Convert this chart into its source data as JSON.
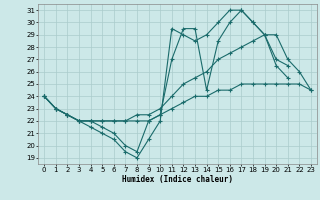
{
  "xlabel": "Humidex (Indice chaleur)",
  "bg_color": "#cce8e8",
  "line_color": "#1a6b6b",
  "grid_color": "#aacccc",
  "ylim": [
    19,
    31
  ],
  "xlim": [
    0,
    23
  ],
  "yticks": [
    19,
    20,
    21,
    22,
    23,
    24,
    25,
    26,
    27,
    28,
    29,
    30,
    31
  ],
  "xticks": [
    0,
    1,
    2,
    3,
    4,
    5,
    6,
    7,
    8,
    9,
    10,
    11,
    12,
    13,
    14,
    15,
    16,
    17,
    18,
    19,
    20,
    21,
    22,
    23
  ],
  "lines": [
    {
      "x": [
        0,
        1,
        2,
        3,
        4,
        5,
        6,
        7,
        8,
        9,
        10,
        11,
        12,
        13,
        14,
        15,
        16,
        17,
        18,
        19,
        20,
        21
      ],
      "y": [
        24,
        23,
        22.5,
        22,
        21.5,
        21,
        20.5,
        19.5,
        19,
        20.5,
        22,
        29.5,
        29,
        28.5,
        29,
        30,
        31,
        31,
        30,
        29,
        27,
        26.5
      ]
    },
    {
      "x": [
        0,
        1,
        2,
        3,
        4,
        5,
        6,
        7,
        8,
        9,
        10,
        11,
        12,
        13,
        14,
        15,
        16,
        17,
        18,
        19,
        20,
        21,
        22,
        23
      ],
      "y": [
        24,
        23,
        22.5,
        22,
        22,
        22,
        22,
        22,
        22,
        22,
        22.5,
        23,
        23.5,
        24,
        24,
        24.5,
        24.5,
        25,
        25,
        25,
        25,
        25,
        25,
        24.5
      ]
    },
    {
      "x": [
        0,
        1,
        2,
        3,
        4,
        5,
        6,
        7,
        8,
        9,
        10,
        11,
        12,
        13,
        14,
        15,
        16,
        17,
        18,
        19,
        20,
        21,
        22,
        23
      ],
      "y": [
        24,
        23,
        22.5,
        22,
        22,
        22,
        22,
        22,
        22.5,
        22.5,
        23,
        24,
        25,
        25.5,
        26,
        27,
        27.5,
        28,
        28.5,
        29,
        29,
        27,
        26,
        24.5
      ]
    },
    {
      "x": [
        0,
        1,
        2,
        3,
        4,
        5,
        6,
        7,
        8,
        9,
        10,
        11,
        12,
        13,
        14,
        15,
        16,
        17,
        18,
        19,
        20,
        21
      ],
      "y": [
        24,
        23,
        22.5,
        22,
        22,
        21.5,
        21,
        20,
        19.5,
        22,
        22.5,
        27,
        29.5,
        29.5,
        24.5,
        28.5,
        30,
        31,
        30,
        29,
        26.5,
        25.5
      ]
    }
  ]
}
